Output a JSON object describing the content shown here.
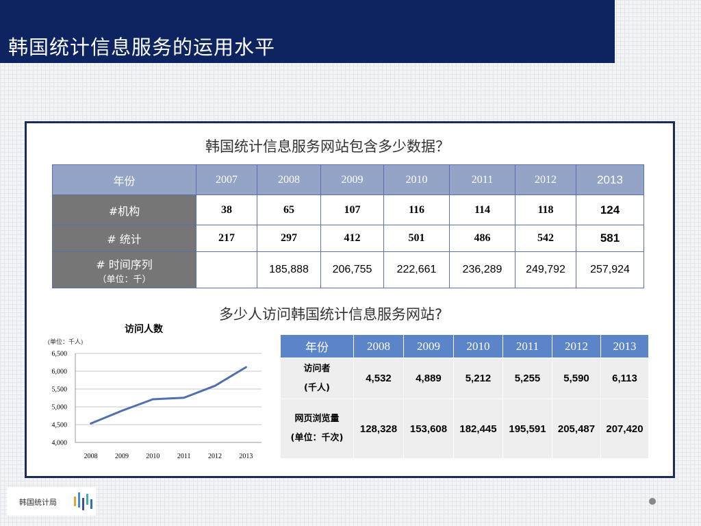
{
  "page": {
    "title": "韩国统计信息服务的运用水平",
    "heading1": "韩国统计信息服务网站包含多少数据？",
    "heading2": "多少人访问韩国统计信息服务网站?",
    "logo_text": "韩国统计局"
  },
  "colors": {
    "title_bar": "#0d2460",
    "table1_header": "#93a4c6",
    "table1_row_label": "#767676",
    "table2_header": "#5b85c8",
    "line": "#4f6fae"
  },
  "table1": {
    "header_label": "年份",
    "years": [
      "2007",
      "2008",
      "2009",
      "2010",
      "2011",
      "2012",
      "2013"
    ],
    "rows": [
      {
        "label": "#机构",
        "values": [
          "38",
          "65",
          "107",
          "116",
          "114",
          "118",
          "124"
        ]
      },
      {
        "label": "# 统计",
        "values": [
          "217",
          "297",
          "412",
          "501",
          "486",
          "542",
          "581"
        ]
      },
      {
        "label": "# 时间序列",
        "unit": "（单位：千）",
        "values": [
          "",
          "185,888",
          "206,755",
          "222,661",
          "236,289",
          "249,792",
          "257,924"
        ]
      }
    ]
  },
  "table2": {
    "header_label": "年份",
    "years": [
      "2008",
      "2009",
      "2010",
      "2011",
      "2012",
      "2013"
    ],
    "rows": [
      {
        "label": "访问者",
        "unit": "(千人)",
        "values": [
          "4,532",
          "4,889",
          "5,212",
          "5,255",
          "5,590",
          "6,113"
        ]
      },
      {
        "label": "网页浏览量",
        "unit": "(单位：千次)",
        "values": [
          "128,328",
          "153,608",
          "182,445",
          "195,591",
          "205,487",
          "207,420"
        ]
      }
    ]
  },
  "chart_data": {
    "type": "line",
    "title": "访问人数",
    "unit_label": "(单位：千人)",
    "x": [
      "2008",
      "2009",
      "2010",
      "2011",
      "2012",
      "2013"
    ],
    "series": [
      {
        "values": [
          4532,
          4889,
          5212,
          5255,
          5590,
          6113
        ]
      }
    ],
    "ylim": [
      4000,
      6500
    ],
    "yticks": [
      "4,000",
      "4,500",
      "5,000",
      "5,500",
      "6,000",
      "6,500"
    ],
    "ytick_values": [
      4000,
      4500,
      5000,
      5500,
      6000,
      6500
    ],
    "grid": true,
    "legend": "none"
  }
}
